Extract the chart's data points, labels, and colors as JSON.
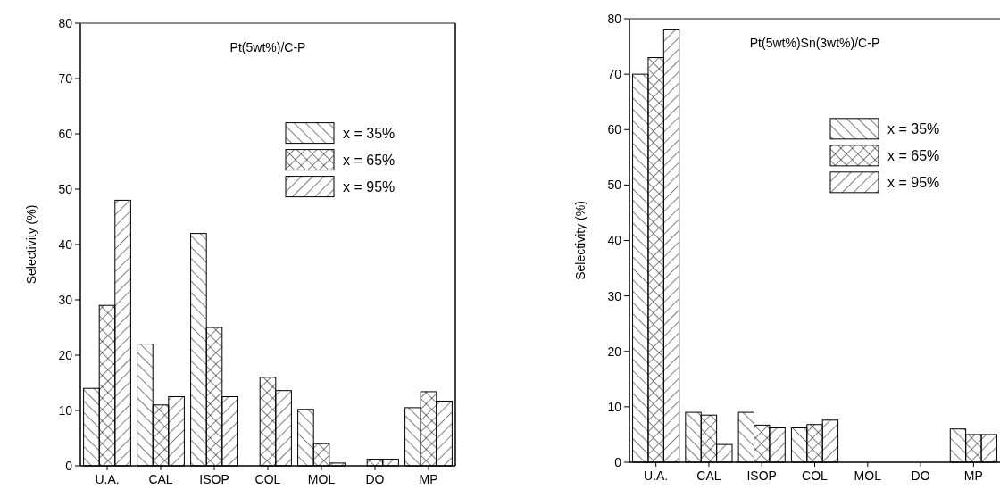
{
  "chart_data": [
    {
      "type": "bar",
      "title": "Pt(5wt%)/C-P",
      "ylabel": "Selectivity (%)",
      "categories": [
        "U.A.",
        "CAL",
        "ISOP",
        "COL",
        "MOL",
        "DO",
        "MP"
      ],
      "ylim": [
        0,
        80
      ],
      "yticks": [
        0,
        10,
        20,
        30,
        40,
        50,
        60,
        70,
        80
      ],
      "legend": "top right",
      "series": [
        {
          "name": "x = 35%",
          "color": "#000000",
          "values": [
            14,
            22,
            42,
            0,
            10.2,
            0,
            10.5
          ]
        },
        {
          "name": "x = 65%",
          "color": "#000000",
          "values": [
            29,
            11,
            25,
            16,
            4,
            1.2,
            13.4
          ]
        },
        {
          "name": "x = 95%",
          "color": "#000000",
          "values": [
            48,
            12.5,
            12.5,
            13.6,
            0.5,
            1.2,
            11.7
          ]
        }
      ]
    },
    {
      "type": "bar",
      "title": "Pt(5wt%)Sn(3wt%)/C-P",
      "ylabel": "Selectivity (%)",
      "categories": [
        "U.A.",
        "CAL",
        "ISOP",
        "COL",
        "MOL",
        "DO",
        "MP"
      ],
      "ylim": [
        0,
        80
      ],
      "yticks": [
        0,
        10,
        20,
        30,
        40,
        50,
        60,
        70,
        80
      ],
      "legend": "top right",
      "series": [
        {
          "name": "x = 35%",
          "color": "#000000",
          "values": [
            70,
            9,
            9,
            6.2,
            0,
            0,
            6
          ]
        },
        {
          "name": "x = 65%",
          "color": "#000000",
          "values": [
            73,
            8.5,
            6.7,
            6.8,
            0,
            0,
            5
          ]
        },
        {
          "name": "x = 95%",
          "color": "#000000",
          "values": [
            78,
            3.2,
            6.2,
            7.6,
            0,
            0,
            5
          ]
        }
      ]
    }
  ]
}
